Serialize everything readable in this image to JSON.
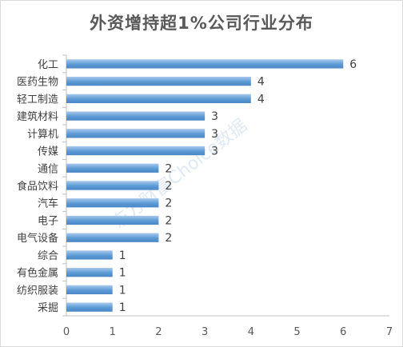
{
  "chart_data": {
    "type": "bar",
    "orientation": "horizontal",
    "title": "外资增持超1%公司行业分布",
    "categories": [
      "化工",
      "医药生物",
      "轻工制造",
      "建筑材料",
      "计算机",
      "传媒",
      "通信",
      "食品饮料",
      "汽车",
      "电子",
      "电气设备",
      "综合",
      "有色金属",
      "纺织服装",
      "采掘"
    ],
    "values": [
      6,
      4,
      4,
      3,
      3,
      3,
      2,
      2,
      2,
      2,
      2,
      1,
      1,
      1,
      1
    ],
    "xlim": [
      0,
      7
    ],
    "xticks": [
      0,
      1,
      2,
      3,
      4,
      5,
      6,
      7
    ],
    "xlabel": "",
    "ylabel": "",
    "grid": false,
    "legend": "none",
    "bar_color": "#5b9bd5",
    "bar_gradient_light": "#a9c8ec",
    "bar_gradient_dark": "#4a86c5",
    "watermark": "东方财富Choice数据"
  }
}
